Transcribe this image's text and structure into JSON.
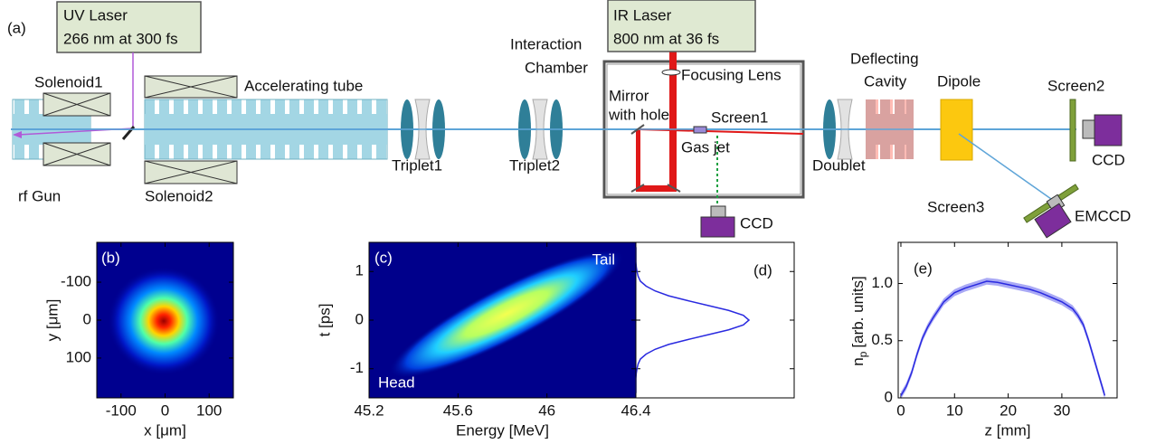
{
  "diagram": {
    "panel_label": "(a)",
    "uv_laser": [
      "UV  Laser",
      "266 nm at 300 fs"
    ],
    "ir_laser": [
      "IR  Laser",
      "800 nm at 36 fs"
    ],
    "solenoid1": "Solenoid1",
    "accelerating_tube": "Accelerating tube",
    "rf_gun": "rf  Gun",
    "solenoid2": "Solenoid2",
    "triplet1": "Triplet1",
    "triplet2": "Triplet2",
    "interaction_chamber": [
      "Interaction",
      "Chamber"
    ],
    "focusing_lens": "Focusing Lens",
    "mirror": [
      "Mirror",
      "with hole"
    ],
    "screen1": "Screen1",
    "gas_jet": "Gas jet",
    "ccd1": "CCD",
    "doublet": "Doublet",
    "deflecting_cavity": [
      "Deflecting",
      "Cavity"
    ],
    "dipole": "Dipole",
    "screen2": "Screen2",
    "ccd2": "CCD",
    "screen3": "Screen3",
    "emccd": "EMCCD"
  },
  "chart_data": [
    {
      "type": "heatmap",
      "panel_label": "(b)",
      "xlabel": "x [μm]",
      "ylabel": "y [μm]",
      "xlim": [
        -155,
        155
      ],
      "xticks": [
        -100,
        0,
        100
      ],
      "ylim": [
        205,
        -205
      ],
      "yticks": [
        -100,
        0,
        100
      ]
    },
    {
      "type": "heatmap",
      "panel_label": "(c)",
      "xlabel": "Energy [MeV]",
      "ylabel": "t [ps]",
      "xlim": [
        45.2,
        46.4
      ],
      "xticks": [
        45.2,
        45.6,
        46,
        46.4
      ],
      "ylim": [
        -1.6,
        1.6
      ],
      "yticks": [
        -1,
        0,
        1
      ],
      "annotations": [
        "Tail",
        "Head"
      ]
    },
    {
      "type": "line",
      "panel_label": "(d)",
      "orientation": "horizontal",
      "color": "#2a2ae0",
      "xlim": [
        0,
        1.4
      ],
      "ylim": [
        -1.6,
        1.6
      ],
      "yticks": [
        -1,
        0,
        1
      ],
      "tick_labels": false,
      "y": [
        -1.5,
        -1.4,
        -1.3,
        -1.2,
        -1.1,
        -1.0,
        -0.9,
        -0.8,
        -0.7,
        -0.6,
        -0.5,
        -0.4,
        -0.3,
        -0.2,
        -0.1,
        0,
        0.1,
        0.2,
        0.3,
        0.4,
        0.5,
        0.6,
        0.7,
        0.8,
        0.9,
        1.0,
        1.1,
        1.2,
        1.3,
        1.4,
        1.5
      ],
      "values": [
        0,
        0,
        0,
        0,
        0.003,
        0.01,
        0.02,
        0.04,
        0.09,
        0.17,
        0.29,
        0.46,
        0.64,
        0.82,
        0.95,
        1,
        0.95,
        0.82,
        0.64,
        0.46,
        0.29,
        0.17,
        0.09,
        0.04,
        0.02,
        0.01,
        0.003,
        0,
        0,
        0,
        0
      ]
    },
    {
      "type": "line",
      "panel_label": "(e)",
      "color": "#2a2ae0",
      "band_color": "#8c8cf2",
      "xlabel": "z [mm]",
      "ylabel": {
        "main": "n",
        "sub": "p",
        "rest": "[arb. units]"
      },
      "xlim": [
        -0.5,
        40.3
      ],
      "xticks": [
        0,
        10,
        20,
        30
      ],
      "ylim": [
        0,
        1.36
      ],
      "yticks": [
        0,
        0.5,
        {
          "value": 1,
          "label": "1.0"
        }
      ],
      "x": [
        0,
        1,
        2,
        3,
        4,
        5,
        6,
        8,
        10,
        12,
        14,
        16,
        18,
        20,
        22,
        24,
        26,
        28,
        30,
        32,
        33,
        34,
        35,
        36,
        37,
        38
      ],
      "values": [
        0.02,
        0.1,
        0.22,
        0.38,
        0.52,
        0.62,
        0.7,
        0.84,
        0.92,
        0.96,
        0.99,
        1.02,
        1.01,
        0.99,
        0.97,
        0.95,
        0.92,
        0.88,
        0.84,
        0.78,
        0.72,
        0.64,
        0.5,
        0.34,
        0.18,
        0.02
      ],
      "error": 0.03
    }
  ]
}
